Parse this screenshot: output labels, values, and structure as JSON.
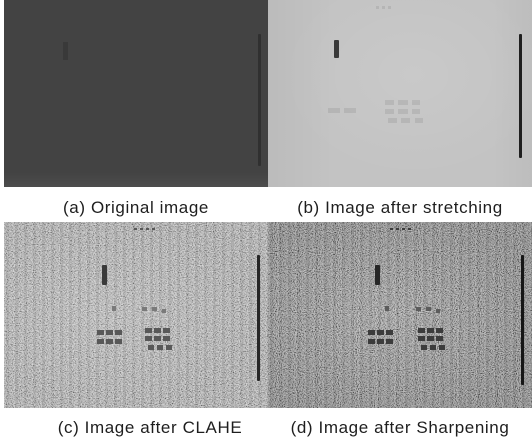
{
  "figure": {
    "panels": [
      {
        "caption": "(a) Original image",
        "tone": "#434343"
      },
      {
        "caption": "(b) Image after stretching",
        "tone": "#c3c3c3"
      },
      {
        "caption": "(c) Image after CLAHE",
        "tone": "#b4b4b4"
      },
      {
        "caption": "(d) Image after Sharpening",
        "tone": "#8e8e8e"
      }
    ]
  }
}
